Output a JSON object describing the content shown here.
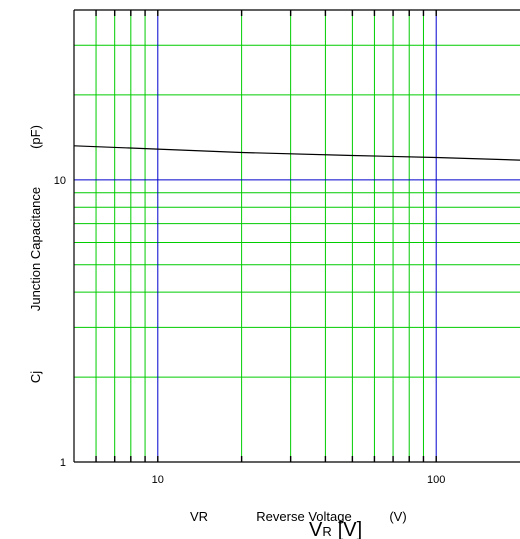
{
  "chart_data": {
    "type": "line",
    "x_scale": "log",
    "y_scale": "log",
    "xlim": [
      5,
      200
    ],
    "ylim": [
      1,
      40
    ],
    "grid": true,
    "x_ticks": [
      {
        "value": 10,
        "label": "10"
      },
      {
        "value": 100,
        "label": "100"
      }
    ],
    "y_ticks": [
      {
        "value": 1,
        "label": "1"
      },
      {
        "value": 10,
        "label": "10"
      }
    ],
    "xlabel": {
      "symbol": "VR",
      "text": "Reverse Voltage",
      "unit": "(V)"
    },
    "ylabel": {
      "symbol": "Cj",
      "text": "Junction Capacitance",
      "unit": "(pF)"
    },
    "overlay_label": {
      "main": "V",
      "sub": "R",
      "unit": "[V]"
    },
    "colors": {
      "grid_minor": "#00cc00",
      "grid_major": "#0000cc",
      "curve": "#000000",
      "frame": "#000000"
    },
    "series": [
      {
        "x": [
          5,
          10,
          20,
          50,
          100,
          200
        ],
        "y": [
          13.2,
          12.85,
          12.5,
          12.2,
          12.0,
          11.75
        ]
      }
    ]
  }
}
